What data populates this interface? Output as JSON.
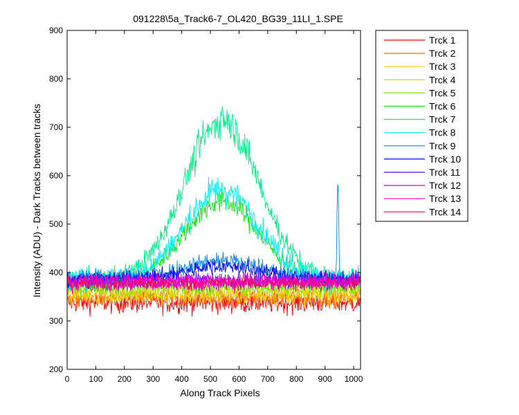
{
  "chart_data": {
    "type": "line",
    "title": "091228\\5a_Track6-7_OL420_BG39_11LI_1.SPE",
    "xlabel": "Along Track Pixels",
    "ylabel": "Intensity (ADU) - Dark Tracks between tracks",
    "xlim": [
      0,
      1024
    ],
    "ylim": [
      200,
      900
    ],
    "xticks": [
      0,
      100,
      200,
      300,
      400,
      500,
      600,
      700,
      800,
      900,
      1000
    ],
    "yticks": [
      200,
      300,
      400,
      500,
      600,
      700,
      800,
      900
    ],
    "grid": false,
    "legend_position": "outside-right",
    "series": [
      {
        "name": "Trck 1",
        "color": "#ff0000",
        "baseline": 338,
        "noise": 16,
        "peak": 0,
        "spike": 0
      },
      {
        "name": "Trck 2",
        "color": "#ff6600",
        "baseline": 348,
        "noise": 14,
        "peak": 0,
        "spike": 0
      },
      {
        "name": "Trck 3",
        "color": "#ffcc00",
        "baseline": 352,
        "noise": 14,
        "peak": 0,
        "spike": 0
      },
      {
        "name": "Trck 4",
        "color": "#ccd600",
        "baseline": 362,
        "noise": 14,
        "peak": 0,
        "spike": 0
      },
      {
        "name": "Trck 5",
        "color": "#66ee00",
        "baseline": 372,
        "noise": 14,
        "peak": 0,
        "spike": 0
      },
      {
        "name": "Trck 6",
        "color": "#00ee00",
        "baseline": 380,
        "noise": 12,
        "peak": 180,
        "spike": 0
      },
      {
        "name": "Trck 7",
        "color": "#00ee88",
        "baseline": 385,
        "noise": 16,
        "peak": 355,
        "spike": 0
      },
      {
        "name": "Trck 8",
        "color": "#00eeee",
        "baseline": 385,
        "noise": 16,
        "peak": 200,
        "spike": 0
      },
      {
        "name": "Trck 9",
        "color": "#0088ff",
        "baseline": 388,
        "noise": 14,
        "peak": 40,
        "spike": 205
      },
      {
        "name": "Trck 10",
        "color": "#0000ff",
        "baseline": 386,
        "noise": 12,
        "peak": 30,
        "spike": 0
      },
      {
        "name": "Trck 11",
        "color": "#6600ff",
        "baseline": 384,
        "noise": 12,
        "peak": 0,
        "spike": 0
      },
      {
        "name": "Trck 12",
        "color": "#cc00ff",
        "baseline": 382,
        "noise": 12,
        "peak": 0,
        "spike": 0
      },
      {
        "name": "Trck 13",
        "color": "#ff00cc",
        "baseline": 380,
        "noise": 12,
        "peak": 0,
        "spike": 0
      },
      {
        "name": "Trck 14",
        "color": "#ff0066",
        "baseline": 378,
        "noise": 12,
        "peak": 0,
        "spike": 0
      }
    ]
  }
}
